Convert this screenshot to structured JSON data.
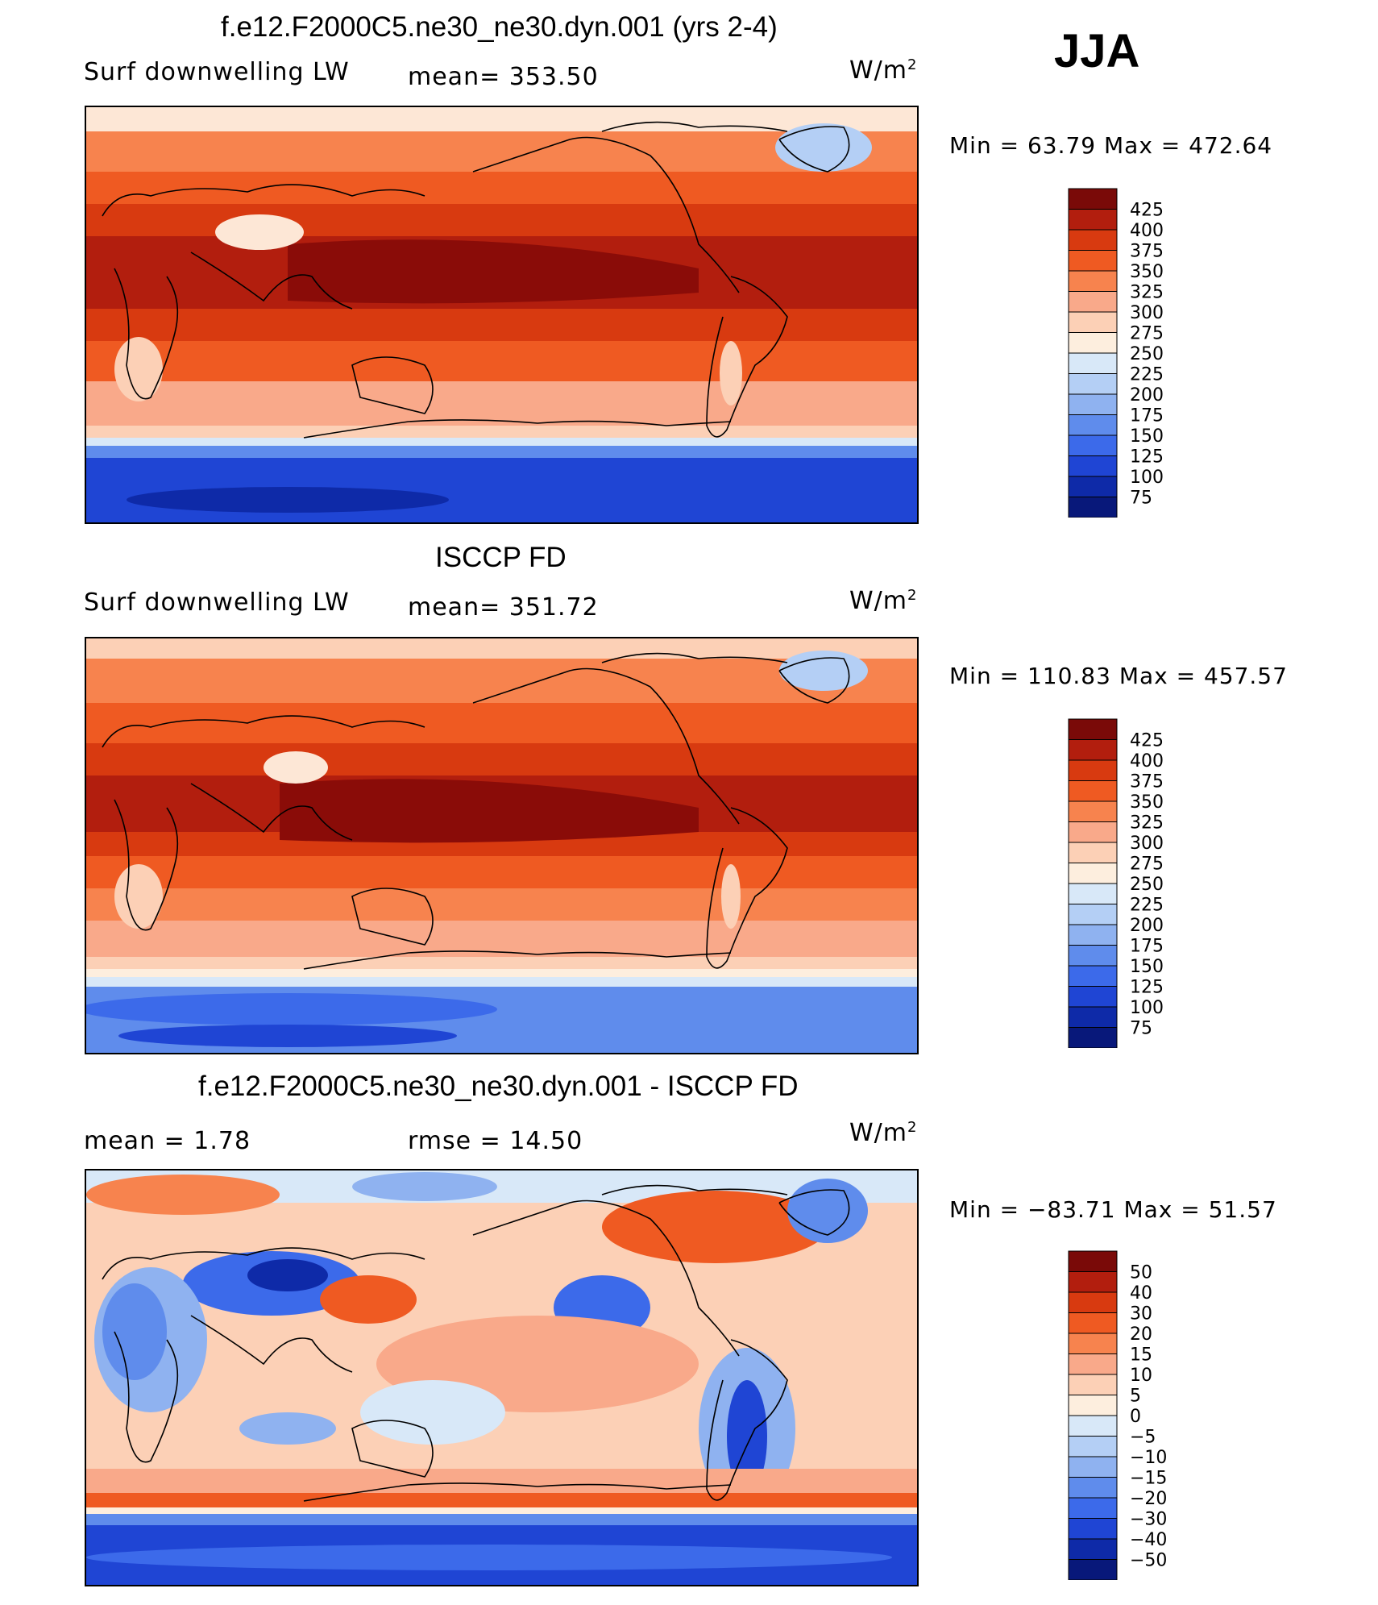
{
  "season": "JJA",
  "panels": [
    {
      "id": "model",
      "title": "f.e12.F2000C5.ne30_ne30.dyn.001 (yrs 2-4)",
      "left_label": "Surf downwelling LW",
      "center_label": "mean=  353.50",
      "unit": "W/m",
      "unit_sup": "2",
      "minmax": "Min =   63.79  Max  =  472.64",
      "colorbar_ticks": [
        "425",
        "400",
        "375",
        "350",
        "325",
        "300",
        "275",
        "250",
        "225",
        "200",
        "175",
        "150",
        "125",
        "100",
        "75"
      ]
    },
    {
      "id": "obs",
      "title": "ISCCP FD",
      "left_label": "Surf downwelling LW",
      "center_label": "mean=  351.72",
      "unit": "W/m",
      "unit_sup": "2",
      "minmax": "Min  =  110.83  Max  =  457.57",
      "colorbar_ticks": [
        "425",
        "400",
        "375",
        "350",
        "325",
        "300",
        "275",
        "250",
        "225",
        "200",
        "175",
        "150",
        "125",
        "100",
        "75"
      ]
    },
    {
      "id": "diff",
      "title": "f.e12.F2000C5.ne30_ne30.dyn.001 - ISCCP FD",
      "left_label": "mean =     1.78",
      "center_label": "rmse =    14.50",
      "unit": "W/m",
      "unit_sup": "2",
      "minmax": "Min  =  −83.71  Max  =     51.57",
      "colorbar_ticks": [
        "50",
        "40",
        "30",
        "20",
        "15",
        "10",
        "5",
        "0",
        "−5",
        "−10",
        "−15",
        "−20",
        "−30",
        "−40",
        "−50"
      ]
    }
  ],
  "colorbar_colors": [
    "#7a0a08",
    "#b21e0e",
    "#d83a10",
    "#ef5a22",
    "#f7834e",
    "#f9a98a",
    "#fcd0b6",
    "#fdeede",
    "#d8e8f8",
    "#b4cff5",
    "#8fb2f0",
    "#5f8cec",
    "#3c6aea",
    "#1f45d4",
    "#0e2aa8",
    "#08187a"
  ],
  "chart_data": [
    {
      "type": "heatmap",
      "title": "f.e12.F2000C5.ne30_ne30.dyn.001 (yrs 2-4)",
      "variable": "Surf downwelling LW",
      "units": "W/m2",
      "mean": 353.5,
      "min": 63.79,
      "max": 472.64,
      "contour_levels": [
        75,
        100,
        125,
        150,
        175,
        200,
        225,
        250,
        275,
        300,
        325,
        350,
        375,
        400,
        425
      ]
    },
    {
      "type": "heatmap",
      "title": "ISCCP FD",
      "variable": "Surf downwelling LW",
      "units": "W/m2",
      "mean": 351.72,
      "min": 110.83,
      "max": 457.57,
      "contour_levels": [
        75,
        100,
        125,
        150,
        175,
        200,
        225,
        250,
        275,
        300,
        325,
        350,
        375,
        400,
        425
      ]
    },
    {
      "type": "heatmap",
      "title": "f.e12.F2000C5.ne30_ne30.dyn.001 - ISCCP FD",
      "units": "W/m2",
      "mean": 1.78,
      "rmse": 14.5,
      "min": -83.71,
      "max": 51.57,
      "contour_levels": [
        -50,
        -40,
        -30,
        -20,
        -15,
        -10,
        -5,
        0,
        5,
        10,
        15,
        20,
        30,
        40,
        50
      ]
    }
  ]
}
